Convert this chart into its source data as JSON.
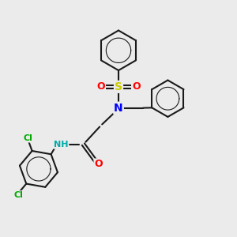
{
  "bg_color": "#ebebeb",
  "bond_color": "#1a1a1a",
  "bond_width": 1.5,
  "atom_colors": {
    "S": "#cccc00",
    "O": "#ff0000",
    "N_sulfonyl": "#0000ff",
    "N_amide": "#00aaaa",
    "Cl": "#00aa00",
    "H": "#888888",
    "C": "#1a1a1a"
  },
  "font_size_atom": 9,
  "font_size_small": 7
}
